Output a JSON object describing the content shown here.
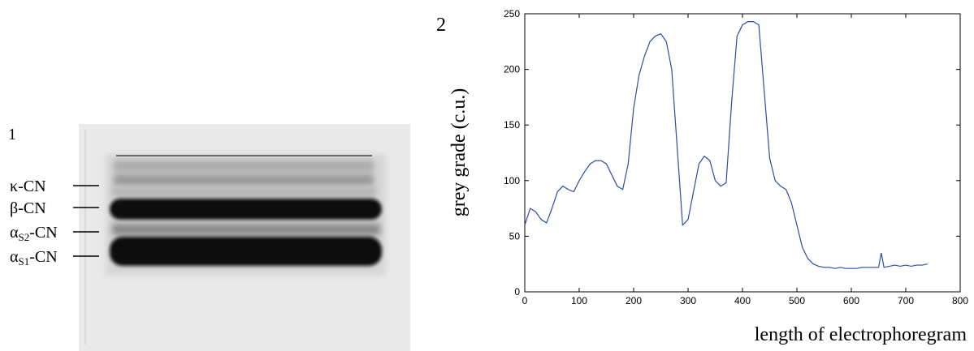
{
  "panels": {
    "left_label": "1",
    "right_label": "2"
  },
  "gel": {
    "bands": [
      {
        "symbol": "κ",
        "subscript": "",
        "suffix": "-CN"
      },
      {
        "symbol": "β",
        "subscript": "",
        "suffix": "-CN"
      },
      {
        "symbol": "α",
        "subscript": "S2",
        "suffix": "-CN"
      },
      {
        "symbol": "α",
        "subscript": "S1",
        "suffix": "-CN"
      }
    ]
  },
  "chart_data": {
    "type": "line",
    "ylabel": "grey grade (c.u.)",
    "xlabel": "length of electrophoregram",
    "x": [
      0,
      10,
      20,
      30,
      40,
      50,
      60,
      70,
      80,
      90,
      100,
      110,
      120,
      130,
      140,
      150,
      160,
      170,
      180,
      190,
      200,
      210,
      220,
      230,
      240,
      250,
      260,
      270,
      280,
      290,
      300,
      310,
      320,
      330,
      340,
      350,
      360,
      370,
      380,
      390,
      400,
      410,
      420,
      430,
      440,
      450,
      460,
      470,
      480,
      490,
      500,
      510,
      520,
      530,
      540,
      550,
      560,
      570,
      580,
      590,
      600,
      610,
      620,
      630,
      640,
      650,
      655,
      660,
      670,
      680,
      690,
      700,
      710,
      720,
      730,
      740
    ],
    "series": [
      {
        "color": "#2b4fa3",
        "values": [
          60,
          75,
          72,
          65,
          62,
          75,
          90,
          95,
          92,
          90,
          100,
          108,
          115,
          118,
          118,
          115,
          105,
          95,
          92,
          115,
          165,
          195,
          212,
          225,
          230,
          232,
          225,
          200,
          130,
          60,
          65,
          90,
          115,
          122,
          118,
          100,
          95,
          98,
          170,
          230,
          240,
          243,
          243,
          240,
          180,
          120,
          100,
          95,
          92,
          80,
          60,
          40,
          30,
          25,
          23,
          22,
          22,
          21,
          22,
          21,
          21,
          21,
          22,
          22,
          22,
          22,
          35,
          22,
          23,
          24,
          23,
          24,
          23,
          24,
          24,
          25
        ]
      }
    ],
    "xlim": [
      0,
      800
    ],
    "xticks": [
      0,
      100,
      200,
      300,
      400,
      500,
      600,
      700,
      800
    ],
    "ylim": [
      0,
      250
    ],
    "yticks": [
      0,
      50,
      100,
      150,
      200,
      250
    ]
  }
}
